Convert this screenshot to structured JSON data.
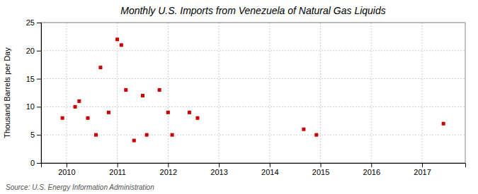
{
  "chart_data": {
    "type": "scatter",
    "title": "Monthly U.S. Imports from Venezuela of Natural Gas Liquids",
    "ylabel": "Thousand Barrels per Day",
    "annotation": "Source: U.S. Energy Information Administration",
    "x": [
      2009.92,
      2010.17,
      2010.25,
      2010.42,
      2010.58,
      2010.67,
      2010.83,
      2011.0,
      2011.08,
      2011.17,
      2011.33,
      2011.5,
      2011.58,
      2011.83,
      2012.0,
      2012.08,
      2012.42,
      2012.58,
      2014.67,
      2014.92,
      2017.42
    ],
    "values": [
      8,
      10,
      11,
      8,
      5,
      17,
      9,
      22,
      21,
      13,
      4,
      12,
      5,
      13,
      9,
      5,
      9,
      8,
      6,
      5,
      7
    ],
    "color": "#cc0000",
    "marker": "square",
    "xlim": [
      2009.5,
      2017.85
    ],
    "xticks": [
      2010,
      2011,
      2012,
      2013,
      2014,
      2015,
      2016,
      2017
    ],
    "ylim": [
      0,
      25
    ],
    "yticks": [
      0,
      5,
      10,
      15,
      20,
      25
    ],
    "grid": true
  }
}
